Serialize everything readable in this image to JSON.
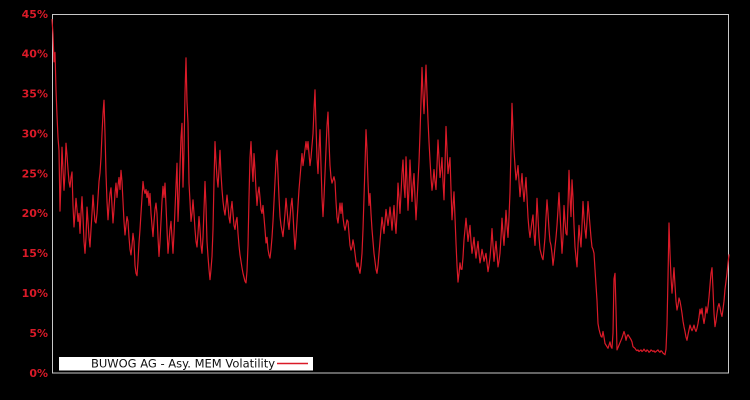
{
  "chart_data": {
    "type": "line",
    "title": "",
    "xlabel": "",
    "ylabel": "",
    "ylim": [
      0,
      45
    ],
    "y_tick_values": [
      0,
      5,
      10,
      15,
      20,
      25,
      30,
      35,
      40,
      45
    ],
    "y_tick_labels": [
      "0%",
      "5%",
      "10%",
      "15%",
      "20%",
      "25%",
      "30%",
      "35%",
      "40%",
      "45%"
    ],
    "x_tick_labels": [],
    "grid": false,
    "colors": {
      "background": "#000000",
      "frame": "#c8c8c8",
      "line": "#da1a28",
      "tick_label": "#da1a28",
      "legend_background": "#ffffff",
      "legend_text": "#111111"
    },
    "legend": {
      "label": "BUWOG AG - Asy. MEM Volatility",
      "position": "bottom-left"
    },
    "series": [
      {
        "name": "BUWOG AG - Asy. MEM Volatility",
        "unit": "percent",
        "values": [
          44.3,
          42.5,
          39.0,
          40.2,
          35.5,
          32.3,
          29.5,
          27.9,
          20.3,
          24.0,
          28.3,
          25.5,
          22.9,
          25.0,
          28.8,
          27.3,
          25.5,
          24.0,
          23.3,
          24.5,
          25.2,
          21.0,
          18.3,
          20.0,
          21.9,
          20.5,
          19.0,
          20.0,
          17.5,
          20.0,
          22.1,
          19.5,
          16.5,
          15.0,
          17.0,
          20.8,
          19.0,
          17.0,
          15.8,
          18.0,
          20.0,
          22.3,
          20.5,
          19.0,
          18.8,
          20.0,
          22.0,
          24.0,
          25.1,
          27.0,
          30.0,
          32.5,
          34.2,
          30.0,
          25.0,
          21.5,
          19.2,
          21.0,
          22.5,
          23.2,
          21.0,
          18.8,
          20.5,
          22.5,
          23.8,
          22.0,
          23.5,
          24.5,
          23.0,
          25.4,
          24.0,
          21.5,
          19.0,
          17.3,
          18.5,
          19.6,
          19.0,
          17.0,
          15.5,
          14.8,
          16.0,
          17.5,
          16.5,
          13.5,
          12.5,
          12.2,
          14.0,
          16.3,
          18.0,
          20.0,
          22.0,
          24.0,
          23.0,
          22.5,
          23.0,
          22.0,
          22.8,
          21.0,
          22.5,
          20.0,
          18.5,
          17.1,
          19.0,
          20.5,
          21.3,
          20.0,
          17.0,
          14.6,
          16.5,
          19.0,
          21.5,
          23.4,
          22.0,
          23.8,
          21.0,
          18.0,
          15.0,
          16.5,
          18.0,
          19.0,
          17.0,
          15.0,
          17.5,
          20.5,
          23.5,
          26.3,
          19.0,
          22.0,
          26.0,
          29.5,
          31.3,
          23.3,
          28.0,
          35.0,
          39.5,
          34.0,
          31.3,
          23.8,
          21.5,
          19.0,
          20.0,
          21.7,
          20.0,
          18.0,
          16.5,
          15.8,
          17.5,
          19.6,
          18.0,
          16.0,
          15.0,
          17.0,
          20.5,
          24.0,
          21.0,
          16.5,
          14.6,
          13.0,
          11.7,
          13.0,
          14.6,
          18.0,
          24.0,
          29.0,
          26.5,
          24.5,
          23.3,
          25.5,
          27.9,
          25.0,
          23.0,
          21.5,
          20.5,
          19.8,
          21.0,
          22.3,
          21.0,
          19.5,
          18.8,
          20.5,
          21.5,
          20.0,
          18.5,
          18.0,
          19.0,
          19.5,
          17.5,
          16.0,
          14.8,
          14.0,
          13.2,
          12.5,
          12.0,
          11.5,
          11.3,
          12.8,
          16.0,
          22.0,
          27.0,
          29.0,
          26.0,
          24.0,
          27.5,
          25.5,
          23.0,
          21.0,
          22.5,
          23.3,
          22.0,
          20.5,
          20.0,
          21.0,
          19.5,
          18.0,
          16.3,
          17.0,
          15.5,
          14.8,
          14.4,
          15.5,
          17.0,
          19.0,
          21.5,
          24.0,
          26.5,
          27.9,
          25.0,
          22.0,
          19.6,
          18.5,
          17.8,
          17.1,
          18.5,
          20.0,
          21.9,
          20.5,
          19.0,
          18.0,
          19.5,
          21.0,
          21.9,
          20.0,
          17.5,
          15.5,
          17.0,
          19.0,
          21.0,
          23.0,
          24.5,
          26.0,
          27.5,
          26.0,
          27.0,
          28.0,
          29.0,
          28.0,
          29.0,
          27.5,
          26.0,
          27.0,
          28.5,
          30.0,
          33.0,
          35.5,
          31.0,
          27.0,
          25.0,
          28.0,
          30.5,
          26.0,
          22.0,
          19.6,
          22.0,
          25.0,
          28.0,
          31.0,
          32.7,
          29.0,
          26.0,
          24.5,
          23.8,
          24.2,
          24.6,
          24.0,
          21.5,
          19.5,
          18.8,
          20.0,
          21.3,
          20.0,
          21.3,
          19.5,
          18.5,
          17.9,
          18.5,
          19.2,
          19.0,
          17.5,
          16.0,
          15.4,
          15.8,
          16.7,
          16.0,
          15.0,
          14.0,
          13.3,
          13.8,
          13.0,
          12.5,
          13.5,
          15.0,
          18.0,
          22.0,
          26.0,
          30.5,
          28.0,
          24.0,
          21.0,
          22.5,
          20.0,
          18.0,
          16.5,
          15.0,
          14.0,
          13.0,
          12.5,
          13.5,
          15.0,
          16.5,
          18.0,
          19.5,
          18.5,
          17.5,
          19.0,
          20.5,
          19.5,
          18.5,
          19.5,
          20.8,
          19.5,
          17.9,
          19.5,
          21.0,
          19.0,
          17.5,
          20.0,
          23.8,
          22.0,
          20.0,
          22.5,
          25.0,
          26.7,
          23.5,
          22.0,
          27.1,
          24.0,
          20.4,
          23.0,
          26.7,
          24.0,
          21.5,
          23.5,
          25.0,
          22.0,
          19.2,
          21.5,
          24.0,
          26.5,
          30.0,
          34.0,
          38.3,
          35.0,
          32.5,
          35.5,
          38.6,
          35.0,
          31.7,
          29.0,
          26.7,
          24.5,
          22.9,
          24.0,
          25.5,
          24.0,
          23.0,
          26.0,
          29.2,
          27.0,
          24.5,
          25.5,
          27.0,
          24.0,
          21.7,
          26.0,
          30.9,
          28.0,
          25.0,
          26.0,
          27.0,
          23.0,
          19.2,
          21.0,
          22.7,
          19.5,
          16.3,
          13.5,
          11.4,
          12.5,
          13.8,
          13.0,
          13.0,
          14.5,
          16.7,
          18.0,
          19.4,
          18.0,
          16.5,
          17.5,
          18.5,
          16.5,
          15.0,
          16.0,
          17.0,
          15.5,
          14.4,
          15.5,
          16.5,
          15.0,
          13.8,
          14.5,
          15.5,
          14.8,
          14.0,
          14.5,
          15.0,
          13.8,
          12.7,
          13.5,
          14.5,
          16.0,
          18.1,
          16.0,
          14.0,
          15.3,
          16.5,
          15.0,
          13.3,
          14.0,
          15.0,
          17.0,
          19.4,
          17.5,
          16.0,
          18.0,
          20.4,
          18.5,
          17.0,
          19.5,
          22.7,
          28.0,
          33.8,
          30.5,
          27.9,
          26.0,
          24.2,
          25.0,
          26.0,
          24.0,
          22.1,
          23.5,
          25.0,
          23.0,
          21.5,
          23.0,
          24.5,
          22.0,
          19.5,
          18.0,
          17.0,
          18.0,
          19.0,
          19.8,
          17.5,
          16.0,
          18.5,
          21.9,
          19.5,
          17.0,
          15.5,
          15.0,
          14.5,
          14.2,
          15.5,
          17.0,
          19.5,
          21.7,
          20.0,
          18.0,
          16.5,
          16.0,
          15.0,
          13.5,
          14.5,
          15.8,
          17.0,
          18.5,
          20.5,
          22.6,
          20.0,
          17.5,
          15.0,
          17.0,
          21.0,
          19.0,
          17.5,
          17.3,
          21.0,
          25.4,
          22.0,
          19.6,
          24.2,
          22.0,
          18.5,
          15.8,
          14.5,
          13.3,
          16.0,
          18.5,
          17.0,
          15.8,
          18.5,
          21.5,
          19.5,
          18.0,
          16.9,
          19.0,
          21.5,
          20.0,
          18.5,
          17.0,
          15.8,
          15.5,
          15.0,
          13.0,
          11.0,
          9.1,
          6.2,
          5.5,
          5.0,
          4.6,
          4.5,
          5.2,
          4.5,
          3.7,
          3.5,
          3.3,
          3.1,
          3.5,
          3.9,
          3.3,
          3.1,
          5.0,
          11.8,
          12.5,
          8.0,
          2.9,
          3.2,
          3.5,
          3.8,
          4.1,
          4.4,
          4.8,
          5.2,
          4.8,
          4.1,
          4.6,
          4.8,
          4.6,
          4.4,
          4.2,
          3.9,
          3.3,
          3.2,
          3.1,
          2.9,
          2.8,
          2.9,
          2.7,
          2.8,
          2.9,
          2.7,
          2.8,
          3.0,
          2.8,
          2.7,
          2.9,
          2.8,
          2.6,
          2.7,
          2.9,
          2.8,
          2.7,
          2.8,
          2.6,
          2.7,
          2.8,
          2.9,
          2.7,
          2.6,
          2.8,
          2.7,
          2.5,
          2.4,
          2.3,
          3.0,
          6.0,
          12.0,
          18.8,
          15.0,
          12.0,
          10.0,
          11.5,
          13.2,
          11.0,
          9.0,
          7.9,
          8.5,
          9.4,
          9.0,
          8.3,
          7.5,
          6.5,
          5.8,
          5.2,
          4.5,
          4.1,
          4.8,
          5.4,
          6.0,
          5.6,
          5.3,
          5.6,
          6.0,
          5.5,
          5.2,
          5.6,
          6.2,
          7.0,
          8.0,
          7.4,
          8.1,
          7.0,
          6.2,
          7.0,
          8.3,
          7.5,
          8.3,
          9.5,
          11.0,
          12.5,
          13.2,
          10.5,
          7.5,
          5.8,
          6.5,
          7.5,
          8.3,
          8.7,
          8.2,
          7.5,
          7.1,
          8.0,
          9.0,
          10.5,
          11.5,
          12.5,
          13.8,
          14.8
        ]
      }
    ]
  }
}
